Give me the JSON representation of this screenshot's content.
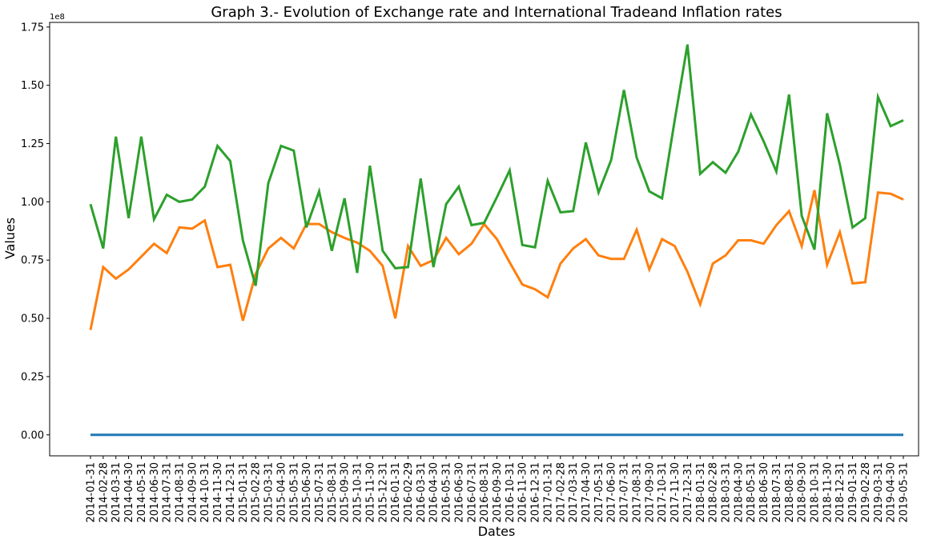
{
  "chart_data": {
    "type": "line",
    "title": "Graph 3.- Evolution of Exchange rate and International Tradeand Inflation rates",
    "xlabel": "Dates",
    "ylabel": "Values",
    "y_offset_label": "1e8",
    "y_scale": 100000000,
    "ylim": [
      -0.09,
      1.77
    ],
    "y_ticks": [
      0.0,
      0.25,
      0.5,
      0.75,
      1.0,
      1.25,
      1.5,
      1.75
    ],
    "y_tick_labels": [
      "0.00",
      "0.25",
      "0.50",
      "0.75",
      "1.00",
      "1.25",
      "1.50",
      "1.75"
    ],
    "grid": false,
    "legend": "none",
    "x": [
      "2014-01-31",
      "2014-02-28",
      "2014-03-31",
      "2014-04-30",
      "2014-05-31",
      "2014-06-30",
      "2014-07-31",
      "2014-08-31",
      "2014-09-30",
      "2014-10-31",
      "2014-11-30",
      "2014-12-31",
      "2015-01-31",
      "2015-02-28",
      "2015-03-31",
      "2015-04-30",
      "2015-05-31",
      "2015-06-30",
      "2015-07-31",
      "2015-08-31",
      "2015-09-30",
      "2015-10-31",
      "2015-11-30",
      "2015-12-31",
      "2016-01-31",
      "2016-02-29",
      "2016-03-31",
      "2016-04-30",
      "2016-05-31",
      "2016-06-30",
      "2016-07-31",
      "2016-08-31",
      "2016-09-30",
      "2016-10-31",
      "2016-11-30",
      "2016-12-31",
      "2017-01-31",
      "2017-02-28",
      "2017-03-31",
      "2017-04-30",
      "2017-05-31",
      "2017-06-30",
      "2017-07-31",
      "2017-08-31",
      "2017-09-30",
      "2017-10-31",
      "2017-11-30",
      "2017-12-31",
      "2018-01-31",
      "2018-02-28",
      "2018-03-31",
      "2018-04-30",
      "2018-05-31",
      "2018-06-30",
      "2018-07-31",
      "2018-08-31",
      "2018-09-30",
      "2018-10-31",
      "2018-11-30",
      "2018-12-31",
      "2019-01-31",
      "2019-02-28",
      "2019-03-31",
      "2019-04-30",
      "2019-05-31"
    ],
    "series": [
      {
        "color": "#1f77b4",
        "values": [
          0,
          0,
          0,
          0,
          0,
          0,
          0,
          0,
          0,
          0,
          0,
          0,
          0,
          0,
          0,
          0,
          0,
          0,
          0,
          0,
          0,
          0,
          0,
          0,
          0,
          0,
          0,
          0,
          0,
          0,
          0,
          0,
          0,
          0,
          0,
          0,
          0,
          0,
          0,
          0,
          0,
          0,
          0,
          0,
          0,
          0,
          0,
          0,
          0,
          0,
          0,
          0,
          0,
          0,
          0,
          0,
          0,
          0,
          0,
          0,
          0,
          0,
          0,
          0,
          0
        ]
      },
      {
        "color": "#ff7f0e",
        "values": [
          0.45,
          0.72,
          0.67,
          0.71,
          0.765,
          0.82,
          0.78,
          0.89,
          0.885,
          0.92,
          0.72,
          0.73,
          0.49,
          0.69,
          0.8,
          0.845,
          0.8,
          0.905,
          0.905,
          0.87,
          0.845,
          0.825,
          0.79,
          0.725,
          0.5,
          0.81,
          0.725,
          0.75,
          0.845,
          0.775,
          0.82,
          0.905,
          0.84,
          0.74,
          0.645,
          0.625,
          0.59,
          0.735,
          0.8,
          0.84,
          0.77,
          0.755,
          0.755,
          0.88,
          0.71,
          0.84,
          0.81,
          0.7,
          0.56,
          0.735,
          0.77,
          0.835,
          0.835,
          0.82,
          0.9,
          0.96,
          0.81,
          1.05,
          0.73,
          0.87,
          0.65,
          0.655,
          1.04,
          1.035,
          1.01
        ]
      },
      {
        "color": "#2ca02c",
        "values": [
          0.99,
          0.8,
          1.28,
          0.93,
          1.28,
          0.925,
          1.03,
          1.0,
          1.01,
          1.065,
          1.24,
          1.175,
          0.835,
          0.64,
          1.08,
          1.24,
          1.22,
          0.89,
          1.045,
          0.79,
          1.015,
          0.695,
          1.155,
          0.79,
          0.715,
          0.72,
          1.1,
          0.72,
          0.99,
          1.065,
          0.9,
          0.91,
          1.02,
          1.135,
          0.815,
          0.805,
          1.09,
          0.955,
          0.96,
          1.255,
          1.04,
          1.18,
          1.48,
          1.19,
          1.045,
          1.015,
          1.35,
          1.675,
          1.12,
          1.17,
          1.125,
          1.215,
          1.375,
          1.26,
          1.13,
          1.46,
          0.94,
          0.795,
          1.38,
          1.16,
          0.89,
          0.93,
          1.45,
          1.325,
          1.35
        ]
      }
    ]
  }
}
